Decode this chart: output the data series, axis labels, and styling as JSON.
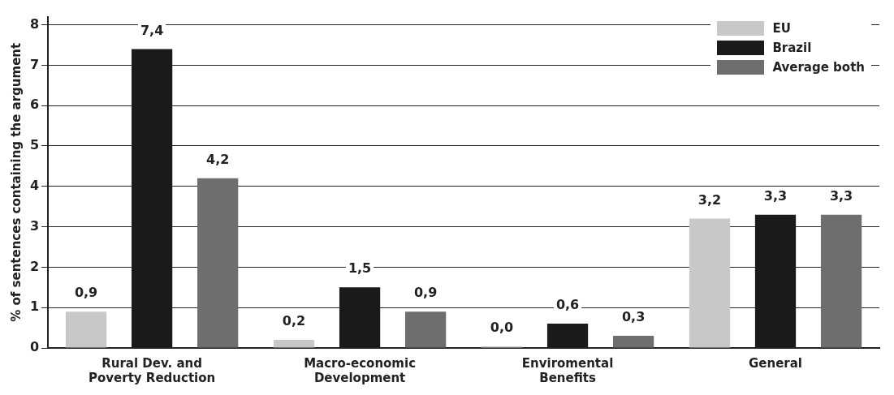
{
  "chart_data": {
    "type": "bar",
    "ylabel": "% of sentences containing the argument",
    "categories": [
      "Rural Dev. and\nPoverty Reduction",
      "Macro-economic\nDevelopment",
      "Enviromental\nBenefits",
      "General"
    ],
    "series": [
      {
        "name": "EU",
        "color": "#c8c8c8",
        "values": [
          0.9,
          0.2,
          0.04,
          3.2
        ],
        "value_labels": [
          "0,9",
          "0,2",
          "0,0",
          "3,2"
        ]
      },
      {
        "name": "Brazil",
        "color": "#1a1a1a",
        "values": [
          7.4,
          1.5,
          0.6,
          3.3
        ],
        "value_labels": [
          "7,4",
          "1,5",
          "0,6",
          "3,3"
        ]
      },
      {
        "name": "Average both",
        "color": "#6d6e70",
        "values": [
          4.2,
          0.9,
          0.3,
          3.3
        ],
        "value_labels": [
          "4,2",
          "0,9",
          "0,3",
          "3,3"
        ]
      }
    ],
    "ylim": [
      0,
      8.2
    ],
    "yticks": [
      0,
      1,
      2,
      3,
      4,
      5,
      6,
      7,
      8
    ],
    "grid": "y",
    "legend": "top right"
  }
}
